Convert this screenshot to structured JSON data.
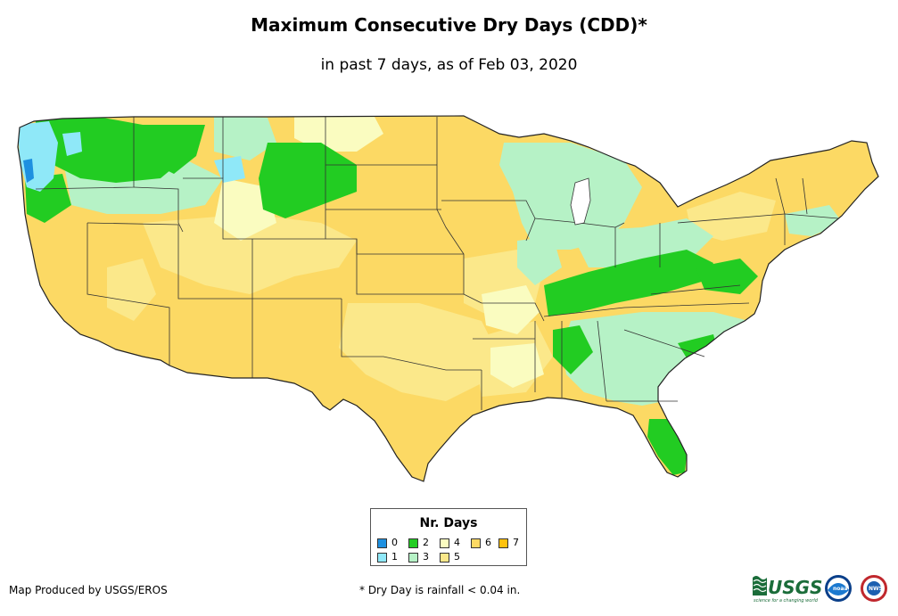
{
  "title": "Maximum Consecutive Dry Days (CDD)*",
  "subtitle": "in past 7 days, as of Feb 03, 2020",
  "legend": {
    "title": "Nr. Days",
    "items": [
      {
        "label": "0",
        "color": "#1e90e0"
      },
      {
        "label": "1",
        "color": "#8fe8f8"
      },
      {
        "label": "2",
        "color": "#22cc22"
      },
      {
        "label": "3",
        "color": "#b6f2c6"
      },
      {
        "label": "4",
        "color": "#fafcc0"
      },
      {
        "label": "5",
        "color": "#fbe88a"
      },
      {
        "label": "6",
        "color": "#fcd964"
      },
      {
        "label": "7",
        "color": "#ffc20e"
      }
    ]
  },
  "credit": "Map Produced by USGS/EROS",
  "footnote": "* Dry Day is rainfall < 0.04 in.",
  "logos": {
    "usgs": "USGS",
    "usgs_tagline": "science for a changing world",
    "noaa": "noaa",
    "nws": "NWS"
  }
}
